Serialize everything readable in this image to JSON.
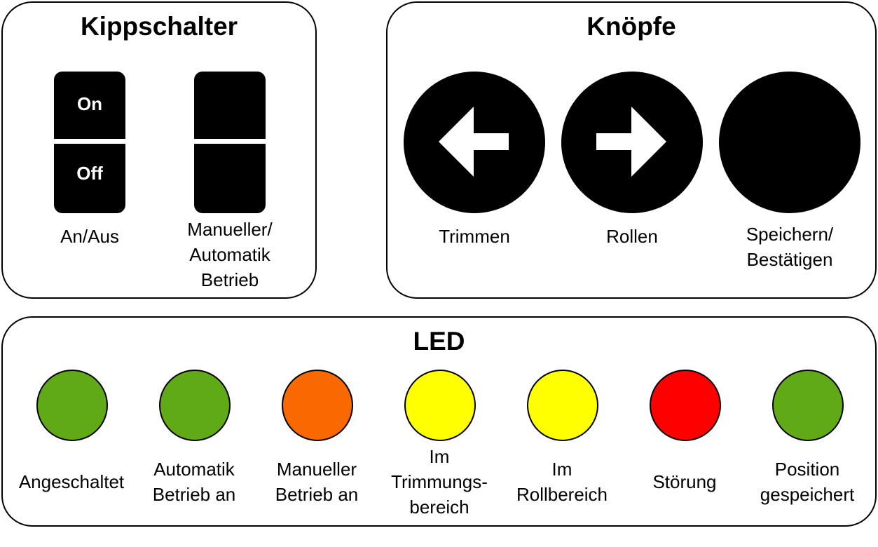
{
  "toggle_panel": {
    "title": "Kippschalter",
    "switches": [
      {
        "top_label": "On",
        "bottom_label": "Off",
        "caption": "An/Aus"
      },
      {
        "top_label": "",
        "bottom_label": "",
        "caption": "Manueller/\nAutomatik\nBetrieb"
      }
    ]
  },
  "button_panel": {
    "title": "Knöpfe",
    "buttons": [
      {
        "icon": "arrow-left-icon",
        "caption": "Trimmen"
      },
      {
        "icon": "arrow-right-icon",
        "caption": "Rollen"
      },
      {
        "icon": "none",
        "caption": "Speichern/\nBestätigen"
      }
    ]
  },
  "led_panel": {
    "title": "LED",
    "leds": [
      {
        "color": "#60a917",
        "caption": "Angeschaltet"
      },
      {
        "color": "#60a917",
        "caption": "Automatik\nBetrieb an"
      },
      {
        "color": "#fa6800",
        "caption": "Manueller\nBetrieb an"
      },
      {
        "color": "#ffff00",
        "caption": "Im\nTrimmungs-\nbereich"
      },
      {
        "color": "#ffff00",
        "caption": "Im\nRollbereich"
      },
      {
        "color": "#ff0000",
        "caption": "Störung"
      },
      {
        "color": "#60a917",
        "caption": "Position\ngespeichert"
      }
    ]
  }
}
